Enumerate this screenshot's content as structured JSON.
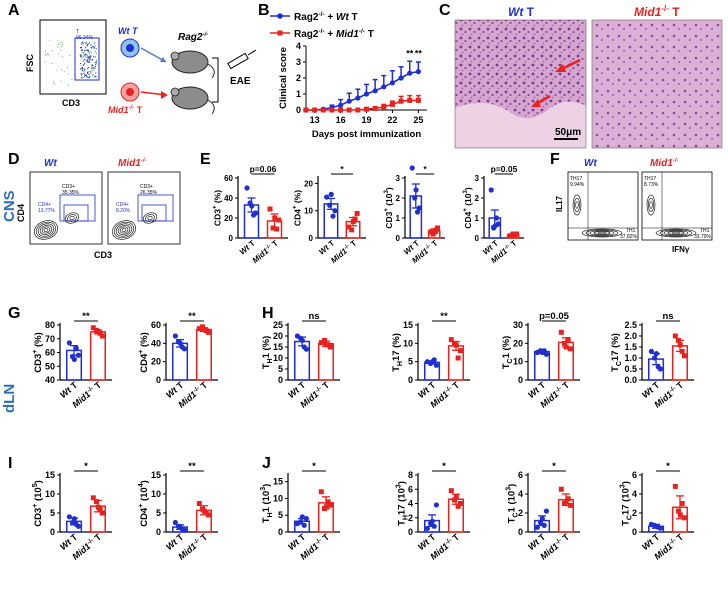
{
  "panel_letters": {
    "A": "A",
    "B": "B",
    "C": "C",
    "D": "D",
    "E": "E",
    "F": "F",
    "G": "G",
    "H": "H",
    "I": "I",
    "J": "J"
  },
  "side_labels": {
    "cns": "CNS",
    "dln": "dLN"
  },
  "colors": {
    "wt": "#1f2fd0",
    "mid": "#e8231f",
    "he_pink": "#d9a9cf",
    "he_purple": "#8c4aa0",
    "contour": "#222222"
  },
  "panel_a": {
    "gate_label": "T",
    "gate_pct": "96.34%",
    "ylabel": "FSC",
    "xlabel": "CD3",
    "wt_prefix": "Wt",
    "t": "T",
    "mid_prefix": "Mid1",
    "mid_sup": "-/-",
    "rag_base": "Rag2",
    "rag_sup": "-/-",
    "eae": "EAE"
  },
  "panel_b": {
    "type": "line",
    "legend_wt": {
      "rag": "Rag2",
      "sup": "-/-",
      "plus": " + ",
      "geno": "Wt",
      "t": " T"
    },
    "legend_mid": {
      "rag": "Rag2",
      "sup": "-/-",
      "plus": " + ",
      "geno": "Mid1",
      "gsup": "-/-",
      "t": " T"
    },
    "xlabel": "Days post immunization",
    "ylabel": "Clinical score",
    "x_ticks": [
      13,
      16,
      19,
      22,
      25
    ],
    "y_ticks": [
      0,
      1,
      2,
      3,
      4
    ],
    "xlim": [
      12,
      26
    ],
    "ylim": [
      0,
      4
    ],
    "series": [
      {
        "name": "Rag2-/- + Wt T",
        "x": [
          12,
          13,
          14,
          15,
          16,
          17,
          18,
          19,
          20,
          21,
          22,
          23,
          24,
          25
        ],
        "y": [
          0,
          0,
          0.05,
          0.15,
          0.3,
          0.55,
          0.75,
          1.0,
          1.2,
          1.45,
          1.7,
          2.0,
          2.3,
          2.4
        ],
        "err": [
          0,
          0,
          0.05,
          0.15,
          0.35,
          0.5,
          0.55,
          0.6,
          0.7,
          0.7,
          0.75,
          0.7,
          0.75,
          0.6
        ]
      },
      {
        "name": "Rag2-/- + Mid1-/- T",
        "x": [
          12,
          13,
          14,
          15,
          16,
          17,
          18,
          19,
          20,
          21,
          22,
          23,
          24,
          25
        ],
        "y": [
          0,
          0,
          0,
          0,
          0,
          0,
          0,
          0.05,
          0.1,
          0.2,
          0.35,
          0.55,
          0.6,
          0.6
        ],
        "err": [
          0,
          0,
          0,
          0,
          0,
          0,
          0,
          0.05,
          0.1,
          0.15,
          0.2,
          0.3,
          0.3,
          0.3
        ]
      }
    ],
    "sig": [
      {
        "x": 24,
        "text": "**"
      },
      {
        "x": 25,
        "text": "**"
      }
    ]
  },
  "panel_c": {
    "wt_title": "Wt",
    "mid_title": "Mid1",
    "mid_sup": "-/-",
    "t": "T",
    "scale": "50μm"
  },
  "panel_d": {
    "wt_title": "Wt",
    "mid_title": "Mid1",
    "mid_sup": "-/-",
    "ylabel": "CD4",
    "xlabel": "CD3",
    "wt_cd3": "CD3+",
    "wt_cd3_pct": "35.35%",
    "wt_cd4": "CD4+",
    "wt_cd4_pct": "13.77%",
    "mid_cd3": "CD3+",
    "mid_cd3_pct": "26.35%",
    "mid_cd4": "CD4+",
    "mid_cd4_pct": "8.20%"
  },
  "panel_f": {
    "wt_title": "Wt",
    "mid_title": "Mid1",
    "mid_sup": "-/-",
    "ylabel": "IL17",
    "xlabel": "IFNγ",
    "wt_th17": "TH17",
    "wt_th17_pct": "9.94%",
    "wt_th1": "TH1",
    "wt_th1_pct": "37.82%",
    "mid_th17": "TH17",
    "mid_th17_pct": "8.73%",
    "mid_th1": "TH1",
    "mid_th1_pct": "33.79%"
  },
  "x_labels": {
    "wt": "Wt",
    "t": " T",
    "mid": "Mid1",
    "mid_sup": "-/-"
  },
  "chart_data": [
    {
      "id": "E1",
      "type": "bar",
      "yl": {
        "b": "CD3",
        "s": "+",
        "u": " (%)"
      },
      "yt": [
        "0",
        "20",
        "40",
        "60"
      ],
      "ylim": [
        0,
        60
      ],
      "values": [
        33,
        17
      ],
      "err": [
        7,
        7
      ],
      "points": [
        [
          50,
          25,
          35,
          23,
          32
        ],
        [
          29,
          18,
          10,
          9,
          20
        ]
      ],
      "sig": "p=0.06"
    },
    {
      "id": "E2",
      "type": "bar",
      "yl": {
        "b": "CD4",
        "s": "+",
        "u": " (%)"
      },
      "yt": [
        "0",
        "10",
        "20"
      ],
      "ylim": [
        0,
        22
      ],
      "values": [
        12.5,
        6
      ],
      "err": [
        2,
        1.5
      ],
      "points": [
        [
          15,
          10,
          12,
          8,
          16
        ],
        [
          4,
          9,
          3,
          7,
          6
        ]
      ],
      "sig": "*"
    },
    {
      "id": "E3",
      "type": "bar",
      "yl": {
        "b": "CD3",
        "s": "+",
        "u": " (10",
        "e": "3",
        "c": ")"
      },
      "yt": [
        "0",
        "1",
        "2",
        "3"
      ],
      "ylim": [
        0,
        3
      ],
      "values": [
        2.1,
        0.35
      ],
      "err": [
        0.6,
        0.1
      ],
      "points": [
        [
          3.5,
          1.5,
          2.0,
          1.3,
          2.4
        ],
        [
          0.3,
          0.5,
          0.2,
          0.4,
          0.3
        ]
      ],
      "sig": "*"
    },
    {
      "id": "E4",
      "type": "bar",
      "yl": {
        "b": "CD4",
        "s": "+",
        "u": " (10",
        "e": "3",
        "c": ")"
      },
      "yt": [
        "0",
        "1",
        "2",
        "3"
      ],
      "ylim": [
        0,
        3
      ],
      "values": [
        1.0,
        0.15
      ],
      "err": [
        0.4,
        0.05
      ],
      "points": [
        [
          2.4,
          0.7,
          0.5,
          1.0,
          0.6
        ],
        [
          0.1,
          0.2,
          0.15,
          0.1,
          0.2
        ]
      ],
      "sig": "p=0.05"
    },
    {
      "id": "G1",
      "type": "bar",
      "yl": {
        "b": "CD3",
        "s": "+",
        "u": " (%)"
      },
      "yt": [
        "40",
        "50",
        "60",
        "70",
        "80"
      ],
      "ylim": [
        40,
        80
      ],
      "values": [
        61.5,
        75
      ],
      "err": [
        3.5,
        1.5
      ],
      "points": [
        [
          67,
          58,
          57,
          63,
          55
        ],
        [
          78,
          72,
          76,
          74,
          75
        ]
      ],
      "sig": "**"
    },
    {
      "id": "G2",
      "type": "bar",
      "yl": {
        "b": "CD4",
        "s": "+",
        "u": " (%)"
      },
      "yt": [
        "0",
        "20",
        "40",
        "60"
      ],
      "ylim": [
        0,
        60
      ],
      "values": [
        40,
        55
      ],
      "err": [
        4,
        2
      ],
      "points": [
        [
          48,
          34,
          42,
          36,
          40
        ],
        [
          56,
          52,
          58,
          54,
          55
        ]
      ],
      "sig": "**"
    },
    {
      "id": "H1",
      "type": "bar",
      "yl": {
        "b": "T",
        "sub": "H",
        "r": "1 (%)"
      },
      "yt": [
        "0",
        "5",
        "10",
        "15",
        "20",
        "25"
      ],
      "ylim": [
        0,
        25
      ],
      "values": [
        17.5,
        16.5
      ],
      "err": [
        2,
        1.2
      ],
      "points": [
        [
          20,
          14,
          19,
          15,
          18
        ],
        [
          17,
          15,
          18,
          16,
          16
        ]
      ],
      "sig": "ns"
    },
    {
      "id": "H2",
      "type": "bar",
      "yl": {
        "b": "T",
        "sub": "H",
        "r": "17 (%)"
      },
      "yt": [
        "0",
        "5",
        "10",
        "15"
      ],
      "ylim": [
        0,
        15
      ],
      "values": [
        4.8,
        9.3
      ],
      "err": [
        0.4,
        1.2
      ],
      "points": [
        [
          5,
          4,
          4.5,
          5.5,
          5
        ],
        [
          11,
          8,
          10,
          6,
          9.5
        ]
      ],
      "sig": "**"
    },
    {
      "id": "H3",
      "type": "bar",
      "yl": {
        "b": "T",
        "sub": "C",
        "r": "1 (%)"
      },
      "yt": [
        "0",
        "10",
        "20",
        "30"
      ],
      "ylim": [
        0,
        30
      ],
      "values": [
        15.5,
        20.5
      ],
      "err": [
        1,
        2.5
      ],
      "points": [
        [
          15,
          14,
          16,
          16,
          15
        ],
        [
          26,
          17,
          20,
          22,
          18
        ]
      ],
      "sig": "p=0.05"
    },
    {
      "id": "H4",
      "type": "bar",
      "yl": {
        "b": "T",
        "sub": "C",
        "r": "17 (%)"
      },
      "yt": [
        "0.0",
        "0.5",
        "1.0",
        "1.5",
        "2.0",
        "2.5"
      ],
      "ylim": [
        0,
        2.5
      ],
      "values": [
        0.95,
        1.55
      ],
      "err": [
        0.25,
        0.25
      ],
      "points": [
        [
          1.3,
          0.5,
          1.0,
          0.6,
          1.2
        ],
        [
          2.0,
          1.1,
          1.8,
          1.3,
          1.6
        ]
      ],
      "sig": "ns"
    },
    {
      "id": "I1",
      "type": "bar",
      "yl": {
        "b": "CD3",
        "s": "+",
        "u": " (10",
        "e": "5",
        "c": ")"
      },
      "yt": [
        "0",
        "5",
        "10",
        "15"
      ],
      "ylim": [
        0,
        15
      ],
      "values": [
        2.8,
        6.8
      ],
      "err": [
        0.9,
        1.5
      ],
      "points": [
        [
          4,
          1.5,
          2.5,
          2,
          3.5
        ],
        [
          9,
          5,
          8,
          6,
          6.5
        ]
      ],
      "sig": "*"
    },
    {
      "id": "I2",
      "type": "bar",
      "yl": {
        "b": "CD4",
        "s": "+",
        "u": " (10",
        "e": "4",
        "c": ")"
      },
      "yt": [
        "0",
        "5",
        "10",
        "15"
      ],
      "ylim": [
        0,
        15
      ],
      "values": [
        1.3,
        5.7
      ],
      "err": [
        0.6,
        1.2
      ],
      "points": [
        [
          2.5,
          0.5,
          1.5,
          0.8,
          1.2
        ],
        [
          7.5,
          4.5,
          6,
          5,
          5.5
        ]
      ],
      "sig": "**"
    },
    {
      "id": "J1",
      "type": "bar",
      "yl": {
        "b": "T",
        "sub": "H",
        "r": "1 (10",
        "e": "3",
        "c": ")"
      },
      "yt": [
        "0",
        "5",
        "10",
        "15"
      ],
      "ylim": [
        0,
        17
      ],
      "values": [
        3.2,
        8.7
      ],
      "err": [
        0.8,
        1.8
      ],
      "points": [
        [
          2.5,
          4,
          3,
          2,
          4.5
        ],
        [
          12,
          8,
          7,
          9,
          7.5
        ]
      ],
      "sig": "*"
    },
    {
      "id": "J2",
      "type": "bar",
      "yl": {
        "b": "T",
        "sub": "H",
        "r": "17 (10",
        "e": "3",
        "c": ")"
      },
      "yt": [
        "0",
        "2",
        "4",
        "6",
        "8"
      ],
      "ylim": [
        0,
        8
      ],
      "values": [
        1.6,
        4.6
      ],
      "err": [
        0.8,
        0.7
      ],
      "points": [
        [
          0.5,
          3.8,
          1.2,
          0.8,
          1.5
        ],
        [
          5.8,
          4,
          4.5,
          3.6,
          5
        ]
      ],
      "sig": "*"
    },
    {
      "id": "J3",
      "type": "bar",
      "yl": {
        "b": "T",
        "sub": "C",
        "r": "1 (10",
        "e": "3",
        "c": ")"
      },
      "yt": [
        "0",
        "2",
        "4",
        "6"
      ],
      "ylim": [
        0,
        6
      ],
      "values": [
        1.2,
        3.4
      ],
      "err": [
        0.5,
        0.6
      ],
      "points": [
        [
          0.5,
          2.2,
          1.0,
          0.7,
          1.4
        ],
        [
          4.5,
          2.8,
          3.0,
          3.5,
          3.2
        ]
      ],
      "sig": "*"
    },
    {
      "id": "J4",
      "type": "bar",
      "yl": {
        "b": "T",
        "sub": "C",
        "r": "17 (10",
        "e": "3",
        "c": ")"
      },
      "yt": [
        "0",
        "2",
        "4",
        "6"
      ],
      "ylim": [
        0,
        6
      ],
      "values": [
        0.6,
        2.6
      ],
      "err": [
        0.2,
        1.2
      ],
      "points": [
        [
          0.8,
          0.4,
          0.7,
          0.5,
          0.6
        ],
        [
          4.8,
          1.5,
          2.2,
          3.0,
          1.8
        ]
      ],
      "sig": "*"
    }
  ]
}
